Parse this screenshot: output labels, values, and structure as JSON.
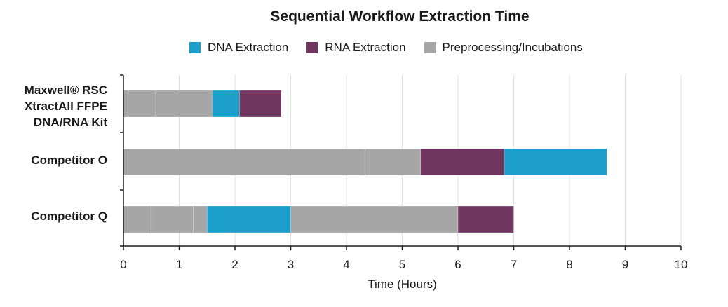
{
  "chart_data": {
    "type": "bar",
    "orientation": "horizontal",
    "stacked": true,
    "title": "Sequential Workflow Extraction Time",
    "xlabel": "Time (Hours)",
    "ylabel": "",
    "xlim": [
      0,
      10
    ],
    "xticks": [
      "0",
      "1",
      "2",
      "3",
      "4",
      "5",
      "6",
      "7",
      "8",
      "9",
      "10"
    ],
    "grid": "vertical",
    "legend_position": "top",
    "legend": [
      {
        "name": "DNA Extraction",
        "color": "#1b9ec9"
      },
      {
        "name": "RNA Extraction",
        "color": "#6f3660"
      },
      {
        "name": "Preprocessing/Incubations",
        "color": "#a6a6a6"
      }
    ],
    "categories": [
      {
        "label_lines": [
          "Maxwell® RSC",
          "XtractAll FFPE",
          "DNA/RNA Kit"
        ]
      },
      {
        "label_lines": [
          "Competitor O"
        ]
      },
      {
        "label_lines": [
          "Competitor Q"
        ]
      }
    ],
    "bars": [
      {
        "segments": [
          {
            "series": "Preprocessing/Incubations",
            "start": 0,
            "end": 0.58
          },
          {
            "series": "Preprocessing/Incubations",
            "start": 0.58,
            "end": 1.6
          },
          {
            "series": "DNA Extraction",
            "start": 1.6,
            "end": 2.08
          },
          {
            "series": "RNA Extraction",
            "start": 2.08,
            "end": 2.83
          }
        ]
      },
      {
        "segments": [
          {
            "series": "Preprocessing/Incubations",
            "start": 0,
            "end": 4.33
          },
          {
            "series": "Preprocessing/Incubations",
            "start": 4.33,
            "end": 5.33
          },
          {
            "series": "RNA Extraction",
            "start": 5.33,
            "end": 6.83
          },
          {
            "series": "DNA Extraction",
            "start": 6.83,
            "end": 8.67
          }
        ]
      },
      {
        "segments": [
          {
            "series": "Preprocessing/Incubations",
            "start": 0,
            "end": 0.5
          },
          {
            "series": "Preprocessing/Incubations",
            "start": 0.5,
            "end": 1.25
          },
          {
            "series": "Preprocessing/Incubations",
            "start": 1.25,
            "end": 1.5
          },
          {
            "series": "DNA Extraction",
            "start": 1.5,
            "end": 3.0
          },
          {
            "series": "Preprocessing/Incubations",
            "start": 3.0,
            "end": 6.0
          },
          {
            "series": "RNA Extraction",
            "start": 6.0,
            "end": 7.0
          }
        ]
      }
    ]
  }
}
